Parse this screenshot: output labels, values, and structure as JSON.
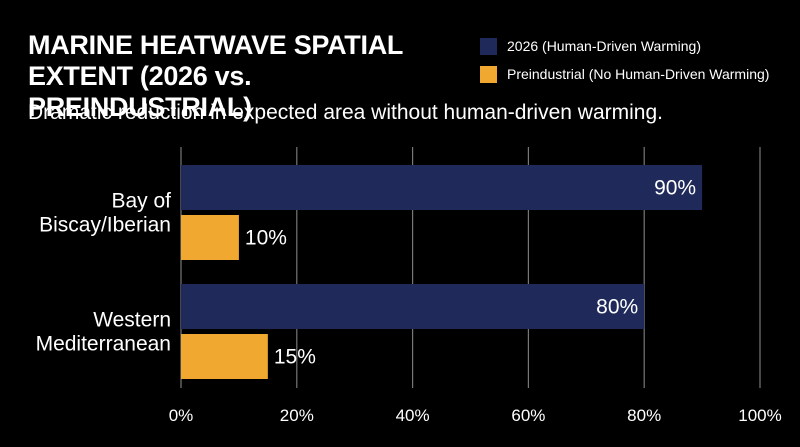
{
  "chart_data": {
    "type": "bar",
    "orientation": "horizontal",
    "title": "MARINE HEATWAVE SPATIAL EXTENT (2026 vs. PREINDUSTRIAL)",
    "subtitle": "Dramatic reduction in expected area without human-driven warming.",
    "categories": [
      "Bay of Biscay/Iberian",
      "Western Mediterranean"
    ],
    "category_lines": [
      [
        "Bay of",
        "Biscay/Iberian"
      ],
      [
        "Western",
        "Mediterranean"
      ]
    ],
    "series": [
      {
        "name": "2026 (Human-Driven Warming)",
        "values": [
          90,
          80
        ],
        "labels": [
          "90%",
          "80%"
        ],
        "color": "#1f2a5a"
      },
      {
        "name": "Preindustrial (No Human-Driven Warming)",
        "values": [
          10,
          15
        ],
        "labels": [
          "10%",
          "15%"
        ],
        "color": "#f0a830"
      }
    ],
    "xlim": [
      0,
      100
    ],
    "xticks": [
      0,
      20,
      40,
      60,
      80,
      100
    ],
    "xtick_labels": [
      "0%",
      "20%",
      "40%",
      "60%",
      "80%",
      "100%"
    ],
    "grid": "vertical",
    "grid_color": "#777777",
    "legend_position": "top-right",
    "background": "#000000"
  }
}
